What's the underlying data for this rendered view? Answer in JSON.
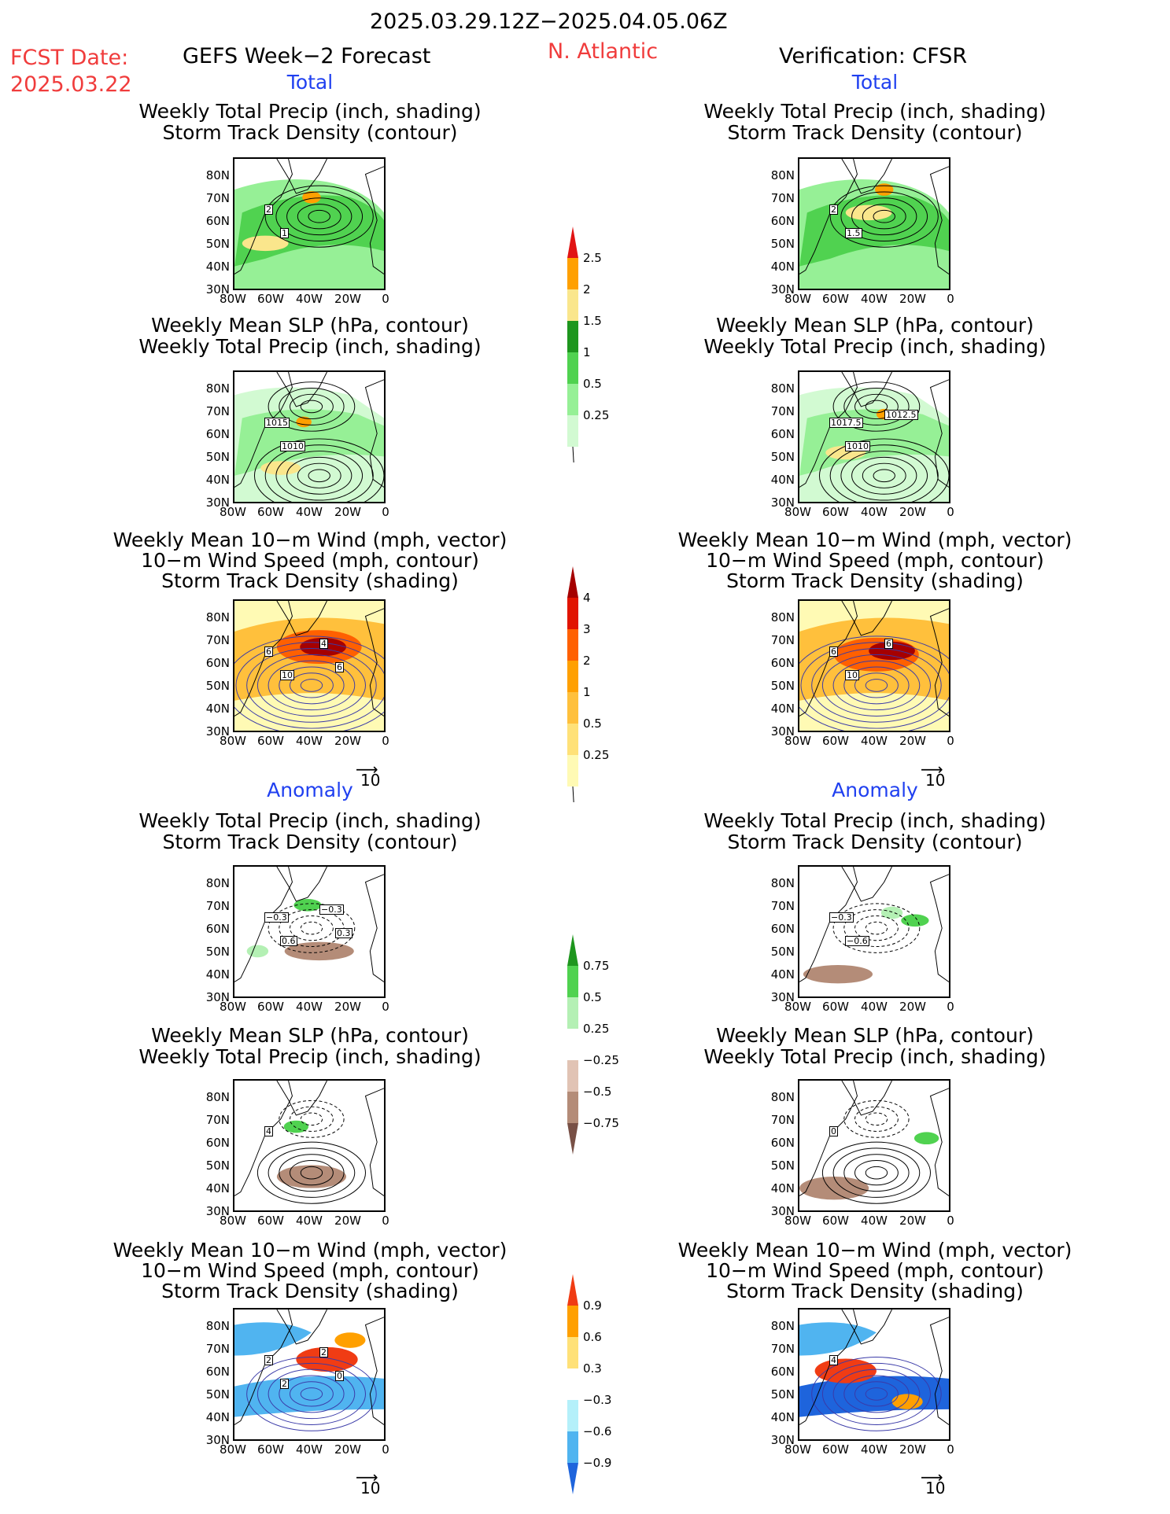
{
  "header": {
    "date_range": "2025.03.29.12Z−2025.04.05.06Z",
    "fcst_label": "FCST Date:",
    "fcst_date": "2025.03.22",
    "left_model": "GEFS Week−2 Forecast",
    "region": "N. Atlantic",
    "right_model": "Verification: CFSR"
  },
  "sections": {
    "total": "Total",
    "anomaly": "Anomaly"
  },
  "panel_titles": {
    "precip_storm": [
      "Weekly Total Precip (inch, shading)",
      "Storm Track Density (contour)"
    ],
    "slp_precip": [
      "Weekly Mean SLP (hPa, contour)",
      "Weekly Total Precip (inch, shading)"
    ],
    "wind_storm": [
      "Weekly Mean 10−m Wind (mph, vector)",
      "10−m Wind Speed (mph, contour)",
      "Storm Track Density (shading)"
    ]
  },
  "axes": {
    "lat_labels": [
      "80N",
      "70N",
      "60N",
      "50N",
      "40N",
      "30N"
    ],
    "lon_labels": [
      "80W",
      "60W",
      "40W",
      "20W",
      "0"
    ]
  },
  "vector_ref": "10",
  "colorbars": {
    "precip_total": [
      "2.5",
      "2",
      "1.5",
      "1",
      "0.5",
      "0.25"
    ],
    "storm_total": [
      "4",
      "3",
      "2",
      "1",
      "0.5",
      "0.25"
    ],
    "precip_anom": [
      "0.75",
      "0.5",
      "0.25",
      "−0.25",
      "−0.5",
      "−0.75"
    ],
    "storm_anom": [
      "0.9",
      "0.6",
      "0.3",
      "−0.3",
      "−0.6",
      "−0.9"
    ]
  },
  "contour_labels": {
    "p1": [
      "2",
      "1"
    ],
    "p2": [
      "2",
      "1.5"
    ],
    "s1": [
      "1015",
      "1010"
    ],
    "s2": [
      "1017.5",
      "1010",
      "1012.5"
    ],
    "w1": [
      "6",
      "10",
      "4",
      "6"
    ],
    "w2": [
      "6",
      "10",
      "6"
    ],
    "a1": [
      "−0.3",
      "0.6",
      "−0.3",
      "0.3"
    ],
    "a2": [
      "−0.3",
      "−0.6"
    ],
    "b1": [
      "4"
    ],
    "b2": [
      "0"
    ],
    "c1": [
      "2",
      "2",
      "2",
      "0"
    ],
    "c2": [
      "4"
    ]
  },
  "colors": {
    "precip": [
      "#d2fad2",
      "#96f096",
      "#50d250",
      "#1e961e",
      "#fae68c",
      "#ffa000",
      "#e11414"
    ],
    "storm": [
      "#fffab4",
      "#ffe178",
      "#ffc03c",
      "#ffa000",
      "#ff6000",
      "#e11400",
      "#a50000"
    ],
    "precip_anom_pos": [
      "#b4f0b4",
      "#50d250",
      "#1e961e"
    ],
    "precip_anom_neg": [
      "#e1c3b4",
      "#b48c78",
      "#785046"
    ],
    "storm_anom_pos": [
      "#ffe178",
      "#ffa000",
      "#f03c14"
    ],
    "storm_anom_neg": [
      "#b4f0fa",
      "#50b4f0",
      "#1e64dc"
    ]
  }
}
